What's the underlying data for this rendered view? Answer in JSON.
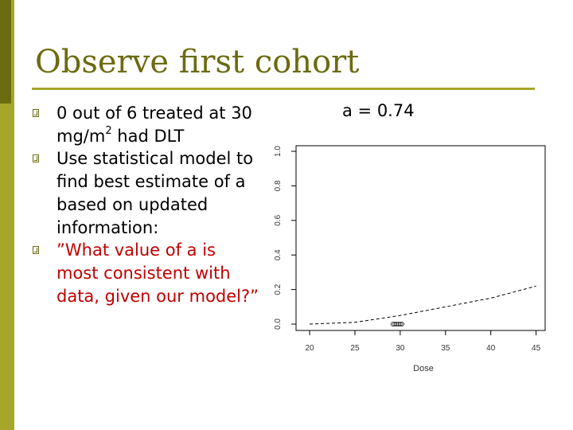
{
  "slide": {
    "title": "Observe first cohort",
    "bullets": [
      {
        "pre": "0 out of 6 treated at 30 mg/m",
        "sup": "2",
        "post": " had DLT"
      },
      {
        "text": "Use statistical model to find best estimate of a based on updated information:"
      },
      {
        "text": "”What value of a is most consistent with data, given our model?”"
      }
    ]
  },
  "colors": {
    "sidebar_dark": "#6b6b10",
    "sidebar_light": "#a6a62a",
    "title": "#6b6b10",
    "quote_text": "#c00000"
  },
  "chart_data": {
    "type": "line",
    "title": "a = 0.74",
    "xlabel": "Dose",
    "ylabel": "",
    "xlim": [
      18.5,
      46
    ],
    "ylim": [
      0,
      1.0
    ],
    "x_ticks": [
      "20",
      "25",
      "30",
      "35",
      "40",
      "45"
    ],
    "y_ticks": [
      "0.0",
      "0.2",
      "0.4",
      "0.6",
      "0.8",
      "1.0"
    ],
    "grid": false,
    "series": [
      {
        "style": "dashed",
        "x": [
          20,
          25,
          30,
          35,
          40,
          45
        ],
        "y": [
          0.0,
          0.01,
          0.05,
          0.1,
          0.15,
          0.22
        ]
      }
    ],
    "observations": {
      "marker": "open-circle",
      "x": [
        29.2,
        29.4,
        29.6,
        29.8,
        30.0,
        30.2
      ],
      "y": [
        0,
        0,
        0,
        0,
        0,
        0
      ]
    }
  }
}
